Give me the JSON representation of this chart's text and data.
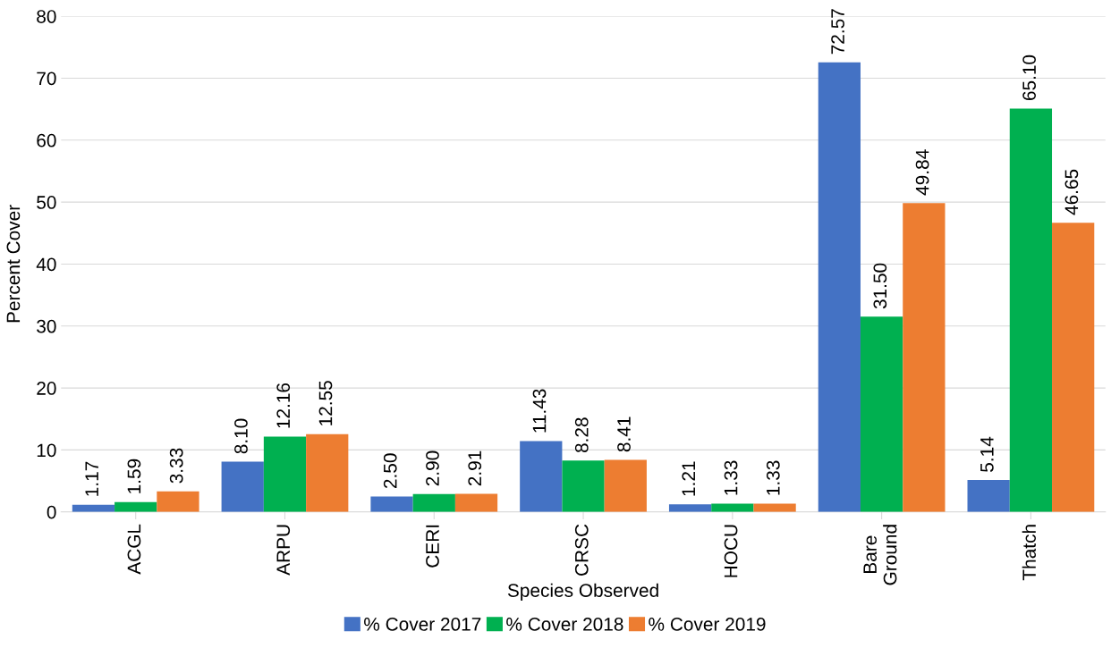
{
  "chart_data": {
    "type": "bar",
    "xlabel": "Species Observed",
    "ylabel": "Percent Cover",
    "categories": [
      "ACGL",
      "ARPU",
      "CERI",
      "CRSC",
      "HOCU",
      "Bare Ground",
      "Thatch"
    ],
    "series": [
      {
        "name": "% Cover 2017",
        "color": "#4472c4",
        "values": [
          1.17,
          8.1,
          2.5,
          11.43,
          1.21,
          72.57,
          5.14
        ],
        "value_labels": [
          "1.17",
          "8.10",
          "2.50",
          "11.43",
          "1.21",
          "72.57",
          "5.14"
        ]
      },
      {
        "name": "% Cover 2018",
        "color": "#00b050",
        "values": [
          1.59,
          12.16,
          2.9,
          8.28,
          1.33,
          31.5,
          65.1
        ],
        "value_labels": [
          "1.59",
          "12.16",
          "2.90",
          "8.28",
          "1.33",
          "31.50",
          "65.10"
        ]
      },
      {
        "name": "% Cover 2019",
        "color": "#ed7d31",
        "values": [
          3.33,
          12.55,
          2.91,
          8.41,
          1.33,
          49.84,
          46.65
        ],
        "value_labels": [
          "3.33",
          "12.55",
          "2.91",
          "8.41",
          "1.33",
          "49.84",
          "46.65"
        ]
      }
    ],
    "ylim": [
      0,
      80
    ],
    "yticks": [
      0,
      10,
      20,
      30,
      40,
      50,
      60,
      70,
      80
    ],
    "grid": "y",
    "legend": "bottom"
  }
}
